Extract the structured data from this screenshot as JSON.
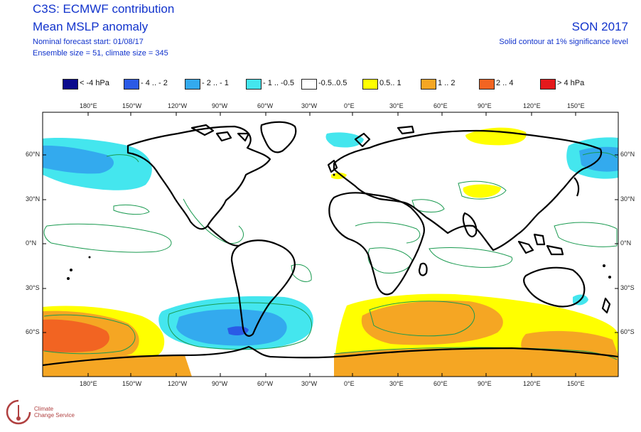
{
  "header": {
    "title1": "C3S: ECMWF contribution",
    "title2": "Mean MSLP anomaly",
    "line3": "Nominal forecast start: 01/08/17",
    "line4": "Ensemble size = 51, climate size = 345",
    "season": "SON 2017",
    "note": "Solid contour at 1% significance level"
  },
  "legend": [
    {
      "label": "< -4 hPa",
      "color": "#0a0a8c"
    },
    {
      "label": "- 4 .. - 2",
      "color": "#2a5ae6"
    },
    {
      "label": "- 2 .. - 1",
      "color": "#33aaee"
    },
    {
      "label": "- 1 .. -0.5",
      "color": "#44e6ee"
    },
    {
      "label": "-0.5..0.5",
      "color": "#ffffff"
    },
    {
      "label": "0.5.. 1",
      "color": "#ffff00"
    },
    {
      "label": "1 .. 2",
      "color": "#f5a623"
    },
    {
      "label": "2 .. 4",
      "color": "#f26422"
    },
    {
      "label": "> 4 hPa",
      "color": "#e41a1c"
    }
  ],
  "axes": {
    "lon_labels": [
      "180°E",
      "150°W",
      "120°W",
      "90°W",
      "60°W",
      "30°W",
      "0°E",
      "30°E",
      "60°E",
      "90°E",
      "120°E",
      "150°E"
    ],
    "lat_labels": [
      "60°N",
      "30°N",
      "0°N",
      "30°S",
      "60°S"
    ]
  },
  "colors": {
    "coast": "#000000",
    "significance_contour": "#1a9a50",
    "title": "#1133cc"
  },
  "logo": {
    "line1": "Climate",
    "line2": "Change Service"
  }
}
